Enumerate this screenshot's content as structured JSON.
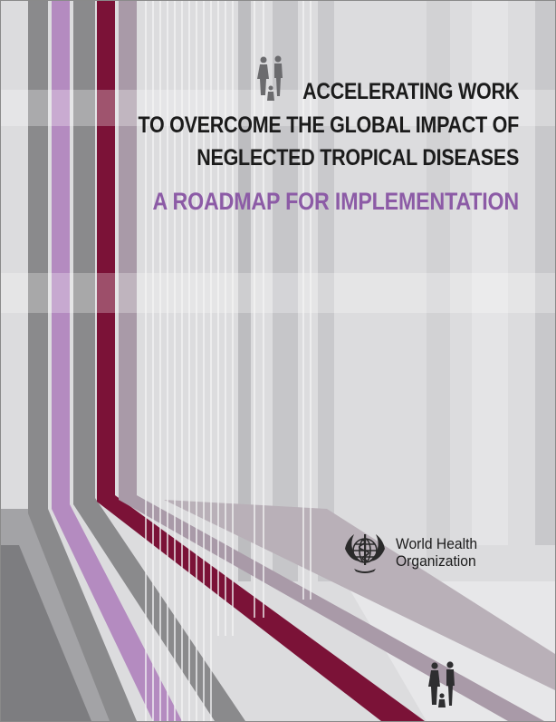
{
  "cover": {
    "title_lines": [
      "ACCELERATING WORK",
      "TO OVERCOME THE GLOBAL IMPACT OF",
      "NEGLECTED TROPICAL DISEASES"
    ],
    "subtitle": "A ROADMAP FOR IMPLEMENTATION",
    "publisher": {
      "name_line1": "World Health",
      "name_line2": "Organization"
    }
  },
  "colors": {
    "background": "#dcdcde",
    "title": "#1b1b1b",
    "subtitle": "#8c5ba6",
    "maroon_stripe": "#7b1237",
    "lilac_stripe": "#b48bc0",
    "grey_stripe": "#8a8a8c"
  },
  "icons": [
    "family-figures-icon",
    "who-emblem-icon"
  ]
}
